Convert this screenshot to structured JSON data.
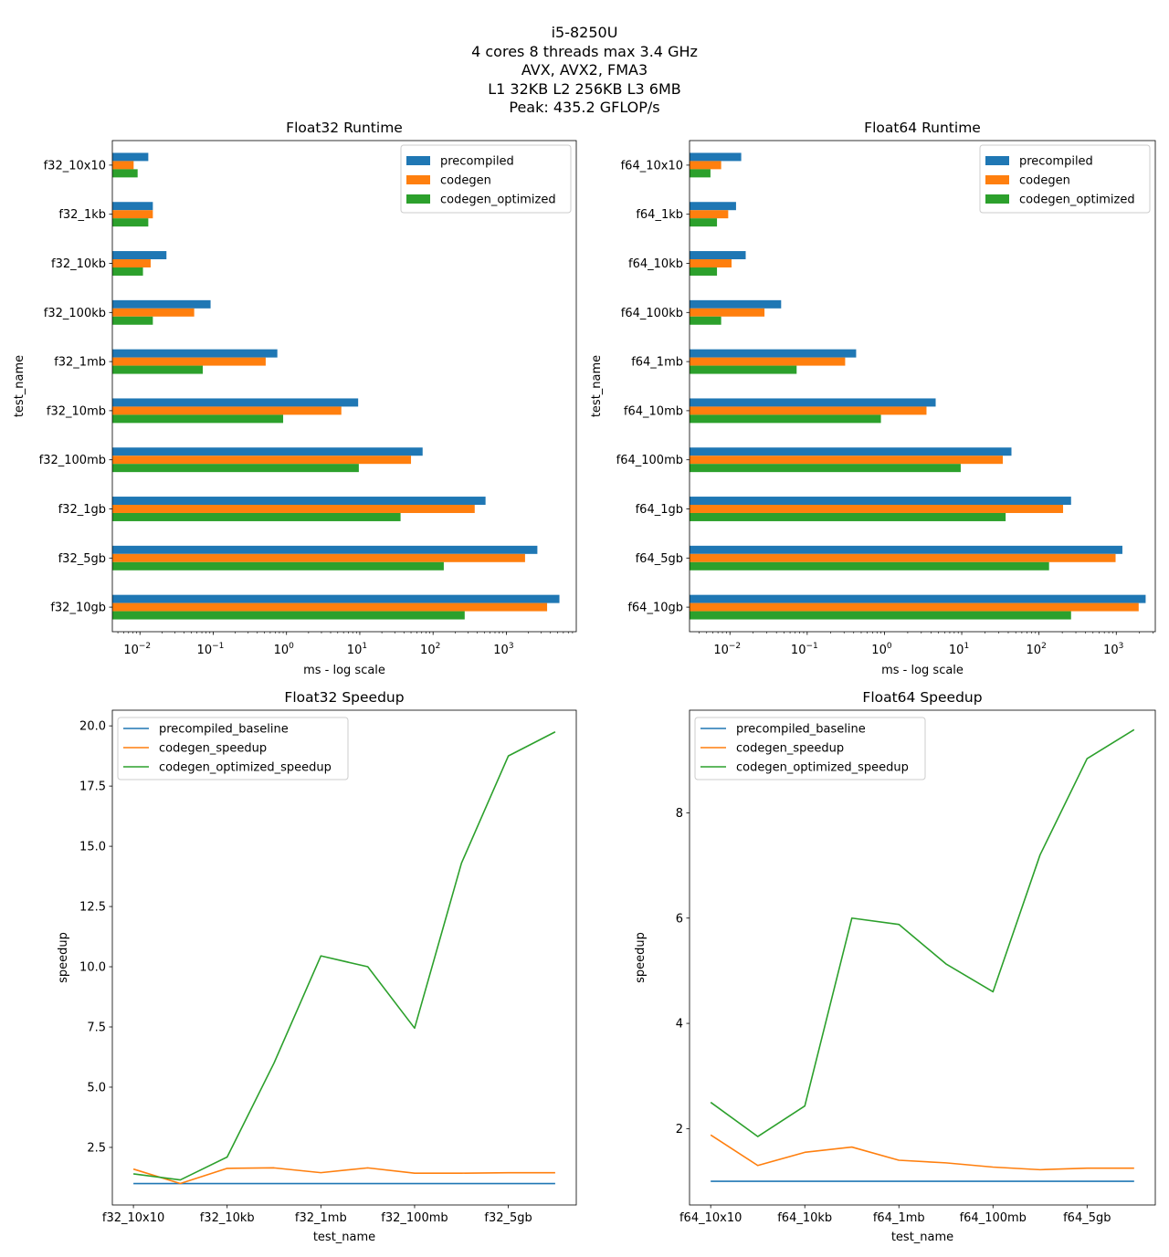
{
  "figure": {
    "suptitle": [
      "i5-8250U",
      "4 cores 8 threads max 3.4 GHz",
      "AVX, AVX2, FMA3",
      "L1 32KB L2 256KB L3 6MB",
      "Peak: 435.2 GFLOP/s"
    ],
    "colors": {
      "precompiled": "#1f77b4",
      "codegen": "#ff7f0e",
      "codegen_optimized": "#2ca02c"
    }
  },
  "chart_data": [
    {
      "id": "f32_runtime",
      "type": "bar",
      "orientation": "horizontal",
      "title": "Float32 Runtime",
      "xlabel": "ms - log scale",
      "ylabel": "test_name",
      "xscale": "log",
      "xlim": [
        0.0042,
        9000
      ],
      "x_ticks": [
        {
          "value": 0.01,
          "base": "10",
          "exp": "−2"
        },
        {
          "value": 0.1,
          "base": "10",
          "exp": "−1"
        },
        {
          "value": 1,
          "base": "10",
          "exp": "0"
        },
        {
          "value": 10,
          "base": "10",
          "exp": "1"
        },
        {
          "value": 100,
          "base": "10",
          "exp": "2"
        },
        {
          "value": 1000,
          "base": "10",
          "exp": "3"
        }
      ],
      "legend": "top-right",
      "categories": [
        "f32_10x10",
        "f32_1kb",
        "f32_10kb",
        "f32_100kb",
        "f32_1mb",
        "f32_10mb",
        "f32_100mb",
        "f32_1gb",
        "f32_5gb",
        "f32_10gb"
      ],
      "series": [
        {
          "name": "precompiled",
          "color": "#1f77b4",
          "values": [
            0.013,
            0.015,
            0.023,
            0.092,
            0.75,
            9.5,
            72,
            520,
            2650,
            5300
          ]
        },
        {
          "name": "codegen",
          "color": "#ff7f0e",
          "values": [
            0.0082,
            0.015,
            0.014,
            0.055,
            0.52,
            5.6,
            50,
            370,
            1800,
            3600
          ]
        },
        {
          "name": "codegen_optimized",
          "color": "#2ca02c",
          "values": [
            0.0093,
            0.013,
            0.011,
            0.015,
            0.072,
            0.9,
            9.7,
            36,
            140,
            270
          ]
        }
      ]
    },
    {
      "id": "f64_runtime",
      "type": "bar",
      "orientation": "horizontal",
      "title": "Float64 Runtime",
      "xlabel": "ms - log scale",
      "ylabel": "test_name",
      "xscale": "log",
      "xlim": [
        0.003,
        3200
      ],
      "x_ticks": [
        {
          "value": 0.01,
          "base": "10",
          "exp": "−2"
        },
        {
          "value": 0.1,
          "base": "10",
          "exp": "−1"
        },
        {
          "value": 1,
          "base": "10",
          "exp": "0"
        },
        {
          "value": 10,
          "base": "10",
          "exp": "1"
        },
        {
          "value": 100,
          "base": "10",
          "exp": "2"
        },
        {
          "value": 1000,
          "base": "10",
          "exp": "3"
        }
      ],
      "legend": "top-right",
      "categories": [
        "f64_10x10",
        "f64_1kb",
        "f64_10kb",
        "f64_100kb",
        "f64_1mb",
        "f64_10mb",
        "f64_100mb",
        "f64_1gb",
        "f64_5gb",
        "f64_10gb"
      ],
      "series": [
        {
          "name": "precompiled",
          "color": "#1f77b4",
          "values": [
            0.014,
            0.012,
            0.016,
            0.046,
            0.43,
            4.6,
            44,
            260,
            1200,
            2400
          ]
        },
        {
          "name": "codegen",
          "color": "#ff7f0e",
          "values": [
            0.0077,
            0.0095,
            0.0105,
            0.028,
            0.31,
            3.5,
            34,
            205,
            980,
            1950
          ]
        },
        {
          "name": "codegen_optimized",
          "color": "#2ca02c",
          "values": [
            0.0056,
            0.0068,
            0.0068,
            0.0077,
            0.073,
            0.9,
            9.7,
            37,
            135,
            260
          ]
        }
      ]
    },
    {
      "id": "f32_speedup",
      "type": "line",
      "title": "Float32 Speedup",
      "xlabel": "test_name",
      "ylabel": "speedup",
      "ylim": [
        0.11,
        20.65
      ],
      "y_ticks": [
        "2.5",
        "5.0",
        "7.5",
        "10.0",
        "12.5",
        "15.0",
        "17.5",
        "20.0"
      ],
      "x_ticks": [
        {
          "index": 0,
          "label": "f32_10x10"
        },
        {
          "index": 2,
          "label": "f32_10kb"
        },
        {
          "index": 4,
          "label": "f32_1mb"
        },
        {
          "index": 6,
          "label": "f32_100mb"
        },
        {
          "index": 8,
          "label": "f32_5gb"
        }
      ],
      "legend": "top-left",
      "x": [
        0,
        1,
        2,
        3,
        4,
        5,
        6,
        7,
        8,
        9
      ],
      "series": [
        {
          "name": "precompiled_baseline",
          "color": "#1f77b4",
          "values": [
            1,
            1,
            1,
            1,
            1,
            1,
            1,
            1,
            1,
            1
          ]
        },
        {
          "name": "codegen_speedup",
          "color": "#ff7f0e",
          "values": [
            1.6,
            1.0,
            1.63,
            1.65,
            1.45,
            1.65,
            1.43,
            1.43,
            1.45,
            1.45
          ]
        },
        {
          "name": "codegen_optimized_speedup",
          "color": "#2ca02c",
          "values": [
            1.4,
            1.15,
            2.1,
            6.0,
            10.45,
            10.0,
            7.45,
            14.3,
            18.75,
            19.75
          ]
        }
      ]
    },
    {
      "id": "f64_speedup",
      "type": "line",
      "title": "Float64 Speedup",
      "xlabel": "test_name",
      "ylabel": "speedup",
      "ylim": [
        0.55,
        9.95
      ],
      "y_ticks": [
        "2",
        "4",
        "6",
        "8"
      ],
      "x_ticks": [
        {
          "index": 0,
          "label": "f64_10x10"
        },
        {
          "index": 2,
          "label": "f64_10kb"
        },
        {
          "index": 4,
          "label": "f64_1mb"
        },
        {
          "index": 6,
          "label": "f64_100mb"
        },
        {
          "index": 8,
          "label": "f64_5gb"
        }
      ],
      "legend": "top-left",
      "x": [
        0,
        1,
        2,
        3,
        4,
        5,
        6,
        7,
        8,
        9
      ],
      "series": [
        {
          "name": "precompiled_baseline",
          "color": "#1f77b4",
          "values": [
            1,
            1,
            1,
            1,
            1,
            1,
            1,
            1,
            1,
            1
          ]
        },
        {
          "name": "codegen_speedup",
          "color": "#ff7f0e",
          "values": [
            1.88,
            1.3,
            1.55,
            1.65,
            1.4,
            1.35,
            1.27,
            1.22,
            1.25,
            1.25
          ]
        },
        {
          "name": "codegen_optimized_speedup",
          "color": "#2ca02c",
          "values": [
            2.5,
            1.85,
            2.43,
            6.0,
            5.88,
            5.13,
            4.6,
            7.2,
            9.03,
            9.58
          ]
        }
      ]
    }
  ]
}
